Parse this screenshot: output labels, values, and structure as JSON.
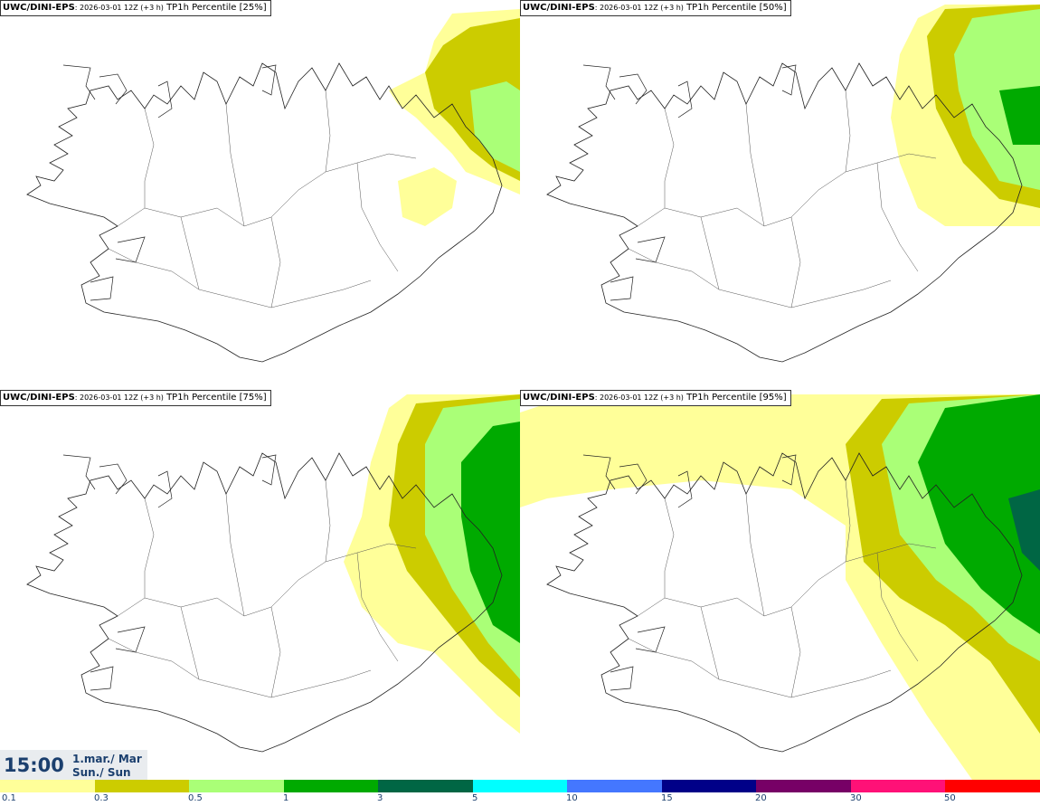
{
  "panels": [
    {
      "model": "UWC/DINI-EPS",
      "run": ": 2026-03-01 12Z (+3 h)",
      "field": " TP1h Percentile [25%]",
      "coverage": 0
    },
    {
      "model": "UWC/DINI-EPS",
      "run": ": 2026-03-01 12Z (+3 h)",
      "field": " TP1h Percentile [50%]",
      "coverage": 1
    },
    {
      "model": "UWC/DINI-EPS",
      "run": ": 2026-03-01 12Z (+3 h)",
      "field": " TP1h Percentile [75%]",
      "coverage": 2
    },
    {
      "model": "UWC/DINI-EPS",
      "run": ": 2026-03-01 12Z (+3 h)",
      "field": " TP1h Percentile [95%]",
      "coverage": 3
    }
  ],
  "valid_time": {
    "time": "15:00",
    "date_line1": "1.mar./ Mar",
    "date_line2": "Sun./ Sun"
  },
  "colorbar": {
    "colors": [
      "#ffff99",
      "#cccc00",
      "#aaff77",
      "#00aa00",
      "#006644",
      "#00ffff",
      "#4477ff",
      "#000088",
      "#770066",
      "#ff1177",
      "#ff0000"
    ],
    "labels": [
      "0.1",
      "0.3",
      "0.5",
      "1",
      "3",
      "5",
      "10",
      "15",
      "20",
      "30",
      "50"
    ]
  }
}
